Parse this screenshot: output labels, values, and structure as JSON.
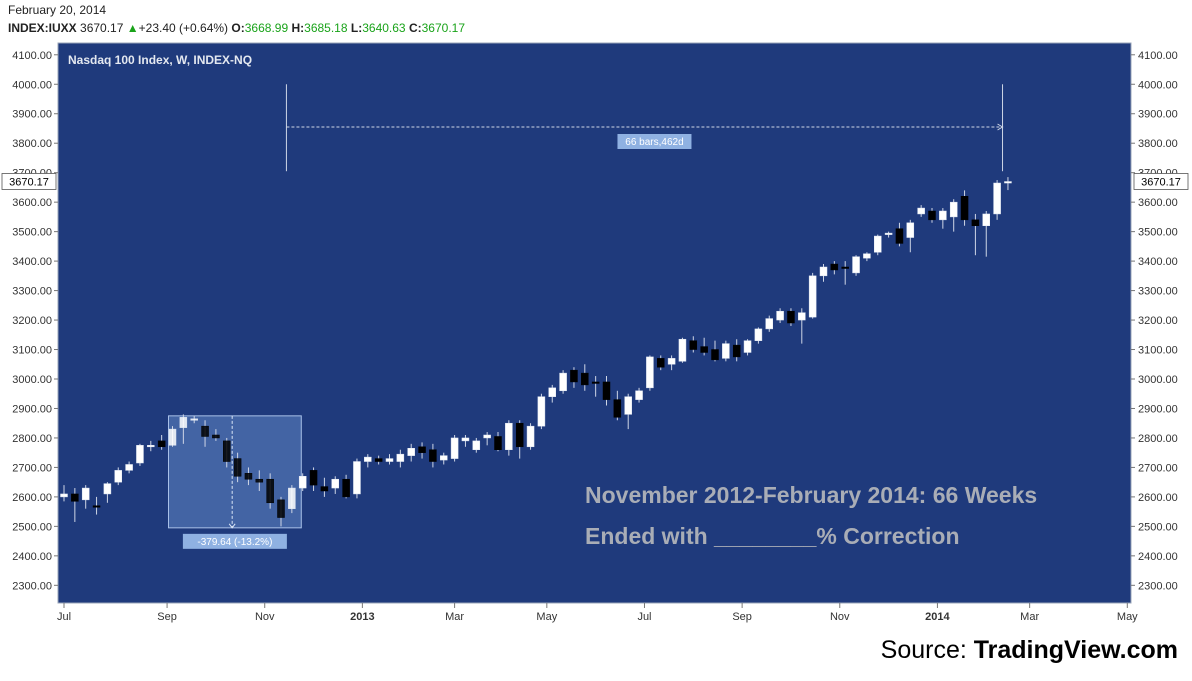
{
  "header": {
    "date": "February 20, 2014",
    "symbol": "INDEX:IUXX",
    "last": "3670.17",
    "change_arrow": "▲",
    "change": "+23.40 (+0.64%)",
    "open_label": "O:",
    "open": "3668.99",
    "high_label": "H:",
    "high": "3685.18",
    "low_label": "L:",
    "low": "3640.63",
    "close_label": "C:",
    "close": "3670.17"
  },
  "colors": {
    "chart_bg": "#1f3a7c",
    "axis_bg": "#ffffff",
    "up_candle": "#ffffff",
    "down_candle": "#000000",
    "wick": "#cfd6e6",
    "price_label_bg": "#ffffff",
    "annotation_text": "#a9adb6",
    "change_green": "#1aa31a",
    "measure_box": "#5b80c0",
    "measure_label_bg": "#8fb1e2"
  },
  "source": {
    "prefix": "Source:",
    "brand": "TradingView.com"
  },
  "chart_data": {
    "type": "candlestick",
    "title": "Nasdaq 100 Index, W, INDEX-NQ",
    "ylim": [
      2240,
      4140
    ],
    "y_ticks": [
      2300,
      2400,
      2500,
      2600,
      2700,
      2800,
      2900,
      3000,
      3100,
      3200,
      3300,
      3400,
      3500,
      3600,
      3700,
      3800,
      3900,
      4000,
      4100
    ],
    "y_tick_labels": [
      "2300.00",
      "2400.00",
      "2500.00",
      "2600.00",
      "2700.00",
      "2800.00",
      "2900.00",
      "3000.00",
      "3100.00",
      "3200.00",
      "3300.00",
      "3400.00",
      "3500.00",
      "3600.00",
      "3700.00",
      "3800.00",
      "3900.00",
      "4000.00",
      "4100.00"
    ],
    "x_ticks": [
      {
        "label": "Jul",
        "bar": 0
      },
      {
        "label": "Sep",
        "bar": 9.5
      },
      {
        "label": "Nov",
        "bar": 18.5
      },
      {
        "label": "2013",
        "bar": 27.5
      },
      {
        "label": "Mar",
        "bar": 36
      },
      {
        "label": "May",
        "bar": 44.5
      },
      {
        "label": "Jul",
        "bar": 53.5
      },
      {
        "label": "Sep",
        "bar": 62.5
      },
      {
        "label": "Nov",
        "bar": 71.5
      },
      {
        "label": "2014",
        "bar": 80.5
      },
      {
        "label": "Mar",
        "bar": 89
      },
      {
        "label": "May",
        "bar": 98
      }
    ],
    "last_price_label": "3670.17",
    "candles": [
      {
        "o": 2600,
        "h": 2640,
        "l": 2585,
        "c": 2610
      },
      {
        "o": 2610,
        "h": 2630,
        "l": 2515,
        "c": 2585
      },
      {
        "o": 2590,
        "h": 2640,
        "l": 2560,
        "c": 2630
      },
      {
        "o": 2570,
        "h": 2600,
        "l": 2540,
        "c": 2565
      },
      {
        "o": 2610,
        "h": 2650,
        "l": 2580,
        "c": 2645
      },
      {
        "o": 2650,
        "h": 2700,
        "l": 2640,
        "c": 2690
      },
      {
        "o": 2690,
        "h": 2720,
        "l": 2680,
        "c": 2710
      },
      {
        "o": 2715,
        "h": 2780,
        "l": 2705,
        "c": 2775
      },
      {
        "o": 2770,
        "h": 2790,
        "l": 2755,
        "c": 2775
      },
      {
        "o": 2790,
        "h": 2810,
        "l": 2760,
        "c": 2770
      },
      {
        "o": 2775,
        "h": 2840,
        "l": 2770,
        "c": 2830
      },
      {
        "o": 2835,
        "h": 2880,
        "l": 2780,
        "c": 2870
      },
      {
        "o": 2860,
        "h": 2875,
        "l": 2850,
        "c": 2865
      },
      {
        "o": 2840,
        "h": 2860,
        "l": 2770,
        "c": 2805
      },
      {
        "o": 2810,
        "h": 2830,
        "l": 2790,
        "c": 2800
      },
      {
        "o": 2790,
        "h": 2800,
        "l": 2700,
        "c": 2720
      },
      {
        "o": 2730,
        "h": 2750,
        "l": 2650,
        "c": 2670
      },
      {
        "o": 2680,
        "h": 2700,
        "l": 2640,
        "c": 2660
      },
      {
        "o": 2660,
        "h": 2690,
        "l": 2620,
        "c": 2650
      },
      {
        "o": 2660,
        "h": 2680,
        "l": 2560,
        "c": 2580
      },
      {
        "o": 2590,
        "h": 2600,
        "l": 2500,
        "c": 2530
      },
      {
        "o": 2560,
        "h": 2640,
        "l": 2545,
        "c": 2630
      },
      {
        "o": 2630,
        "h": 2680,
        "l": 2620,
        "c": 2670
      },
      {
        "o": 2690,
        "h": 2700,
        "l": 2620,
        "c": 2640
      },
      {
        "o": 2635,
        "h": 2665,
        "l": 2600,
        "c": 2620
      },
      {
        "o": 2630,
        "h": 2670,
        "l": 2610,
        "c": 2660
      },
      {
        "o": 2660,
        "h": 2675,
        "l": 2595,
        "c": 2600
      },
      {
        "o": 2610,
        "h": 2730,
        "l": 2595,
        "c": 2720
      },
      {
        "o": 2720,
        "h": 2745,
        "l": 2700,
        "c": 2735
      },
      {
        "o": 2730,
        "h": 2740,
        "l": 2710,
        "c": 2720
      },
      {
        "o": 2720,
        "h": 2745,
        "l": 2710,
        "c": 2730
      },
      {
        "o": 2720,
        "h": 2760,
        "l": 2700,
        "c": 2745
      },
      {
        "o": 2740,
        "h": 2780,
        "l": 2720,
        "c": 2765
      },
      {
        "o": 2770,
        "h": 2785,
        "l": 2730,
        "c": 2750
      },
      {
        "o": 2760,
        "h": 2780,
        "l": 2700,
        "c": 2720
      },
      {
        "o": 2725,
        "h": 2750,
        "l": 2710,
        "c": 2740
      },
      {
        "o": 2730,
        "h": 2810,
        "l": 2720,
        "c": 2800
      },
      {
        "o": 2790,
        "h": 2810,
        "l": 2770,
        "c": 2800
      },
      {
        "o": 2760,
        "h": 2800,
        "l": 2750,
        "c": 2790
      },
      {
        "o": 2800,
        "h": 2820,
        "l": 2775,
        "c": 2810
      },
      {
        "o": 2805,
        "h": 2820,
        "l": 2755,
        "c": 2760
      },
      {
        "o": 2760,
        "h": 2860,
        "l": 2740,
        "c": 2850
      },
      {
        "o": 2850,
        "h": 2860,
        "l": 2730,
        "c": 2770
      },
      {
        "o": 2770,
        "h": 2850,
        "l": 2760,
        "c": 2840
      },
      {
        "o": 2840,
        "h": 2950,
        "l": 2830,
        "c": 2940
      },
      {
        "o": 2940,
        "h": 2980,
        "l": 2920,
        "c": 2970
      },
      {
        "o": 2960,
        "h": 3030,
        "l": 2950,
        "c": 3020
      },
      {
        "o": 3030,
        "h": 3040,
        "l": 2970,
        "c": 2990
      },
      {
        "o": 3020,
        "h": 3050,
        "l": 2960,
        "c": 2980
      },
      {
        "o": 2990,
        "h": 3010,
        "l": 2940,
        "c": 2985
      },
      {
        "o": 2990,
        "h": 3010,
        "l": 2910,
        "c": 2930
      },
      {
        "o": 2930,
        "h": 2960,
        "l": 2860,
        "c": 2870
      },
      {
        "o": 2880,
        "h": 2950,
        "l": 2830,
        "c": 2940
      },
      {
        "o": 2930,
        "h": 2970,
        "l": 2920,
        "c": 2960
      },
      {
        "o": 2970,
        "h": 3080,
        "l": 2960,
        "c": 3075
      },
      {
        "o": 3070,
        "h": 3080,
        "l": 3030,
        "c": 3040
      },
      {
        "o": 3050,
        "h": 3080,
        "l": 3030,
        "c": 3070
      },
      {
        "o": 3060,
        "h": 3140,
        "l": 3055,
        "c": 3135
      },
      {
        "o": 3130,
        "h": 3145,
        "l": 3090,
        "c": 3100
      },
      {
        "o": 3110,
        "h": 3140,
        "l": 3080,
        "c": 3090
      },
      {
        "o": 3100,
        "h": 3130,
        "l": 3060,
        "c": 3065
      },
      {
        "o": 3070,
        "h": 3130,
        "l": 3060,
        "c": 3120
      },
      {
        "o": 3115,
        "h": 3135,
        "l": 3060,
        "c": 3075
      },
      {
        "o": 3090,
        "h": 3135,
        "l": 3080,
        "c": 3130
      },
      {
        "o": 3130,
        "h": 3175,
        "l": 3120,
        "c": 3170
      },
      {
        "o": 3170,
        "h": 3215,
        "l": 3160,
        "c": 3205
      },
      {
        "o": 3200,
        "h": 3240,
        "l": 3190,
        "c": 3230
      },
      {
        "o": 3230,
        "h": 3240,
        "l": 3180,
        "c": 3190
      },
      {
        "o": 3200,
        "h": 3240,
        "l": 3120,
        "c": 3225
      },
      {
        "o": 3210,
        "h": 3360,
        "l": 3205,
        "c": 3350
      },
      {
        "o": 3350,
        "h": 3390,
        "l": 3330,
        "c": 3380
      },
      {
        "o": 3390,
        "h": 3400,
        "l": 3355,
        "c": 3370
      },
      {
        "o": 3380,
        "h": 3400,
        "l": 3320,
        "c": 3375
      },
      {
        "o": 3360,
        "h": 3420,
        "l": 3350,
        "c": 3415
      },
      {
        "o": 3410,
        "h": 3430,
        "l": 3400,
        "c": 3425
      },
      {
        "o": 3430,
        "h": 3490,
        "l": 3420,
        "c": 3485
      },
      {
        "o": 3490,
        "h": 3500,
        "l": 3480,
        "c": 3495
      },
      {
        "o": 3510,
        "h": 3530,
        "l": 3450,
        "c": 3460
      },
      {
        "o": 3480,
        "h": 3540,
        "l": 3430,
        "c": 3530
      },
      {
        "o": 3560,
        "h": 3590,
        "l": 3550,
        "c": 3580
      },
      {
        "o": 3570,
        "h": 3580,
        "l": 3530,
        "c": 3540
      },
      {
        "o": 3540,
        "h": 3580,
        "l": 3510,
        "c": 3570
      },
      {
        "o": 3550,
        "h": 3610,
        "l": 3500,
        "c": 3600
      },
      {
        "o": 3620,
        "h": 3640,
        "l": 3520,
        "c": 3540
      },
      {
        "o": 3540,
        "h": 3560,
        "l": 3420,
        "c": 3520
      },
      {
        "o": 3520,
        "h": 3570,
        "l": 3415,
        "c": 3560
      },
      {
        "o": 3560,
        "h": 3675,
        "l": 3540,
        "c": 3665
      },
      {
        "o": 3669,
        "h": 3685,
        "l": 3641,
        "c": 3670
      }
    ],
    "measure_range": {
      "label": "66 bars,462d",
      "from_bar": 20.5,
      "to_bar": 86.5,
      "price": 3855
    },
    "measure_drawdown": {
      "label": "-379.64 (-13.2%)",
      "from_bar": 10,
      "to_bar": 21.5,
      "top": 2875,
      "bottom": 2495
    },
    "annotation_line1": "November 2012-February 2014: 66 Weeks",
    "annotation_line2": "Ended with ________% Correction"
  }
}
